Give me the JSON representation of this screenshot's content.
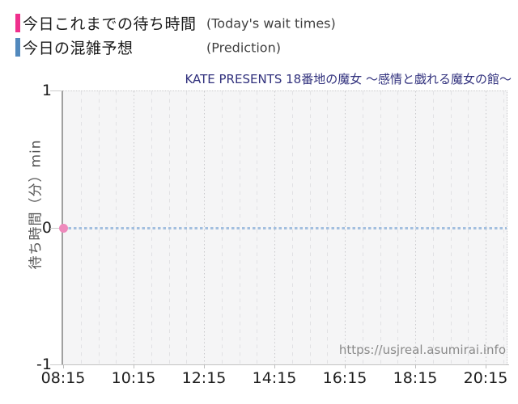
{
  "legend": {
    "items": [
      {
        "label_ja": "今日これまでの待ち時間",
        "label_en": "(Today's wait times)",
        "color": "#ef308d"
      },
      {
        "label_ja": "今日の混雑予想",
        "label_en": "(Prediction)",
        "color": "#5289bd"
      }
    ]
  },
  "chart_data": {
    "type": "line",
    "title": "KATE PRESENTS 18番地の魔女 〜感情と戯れる魔女の館〜",
    "ylabel": "待ち時間（分）min",
    "ylim": [
      -1,
      1
    ],
    "y_ticks": [
      1,
      0,
      -1
    ],
    "x_ticks": [
      "08:15",
      "10:15",
      "12:15",
      "14:15",
      "16:15",
      "18:15",
      "20:15"
    ],
    "x_minor_interval_minutes": 30,
    "grid": true,
    "legend_position": "top-left",
    "series": [
      {
        "name": "今日これまでの待ち時間",
        "name_en": "Today's wait times",
        "type": "scatter",
        "color": "#ee8abc",
        "points": [
          {
            "x": "08:15",
            "y": 0
          }
        ]
      },
      {
        "name": "今日の混雑予想",
        "name_en": "Prediction",
        "type": "line",
        "line_style": "dashed",
        "color": "#a3bfdf",
        "constant_y": 0,
        "x_start": "08:15",
        "x_end": "20:51"
      }
    ],
    "watermark": "https://usjreal.asumirai.info"
  }
}
